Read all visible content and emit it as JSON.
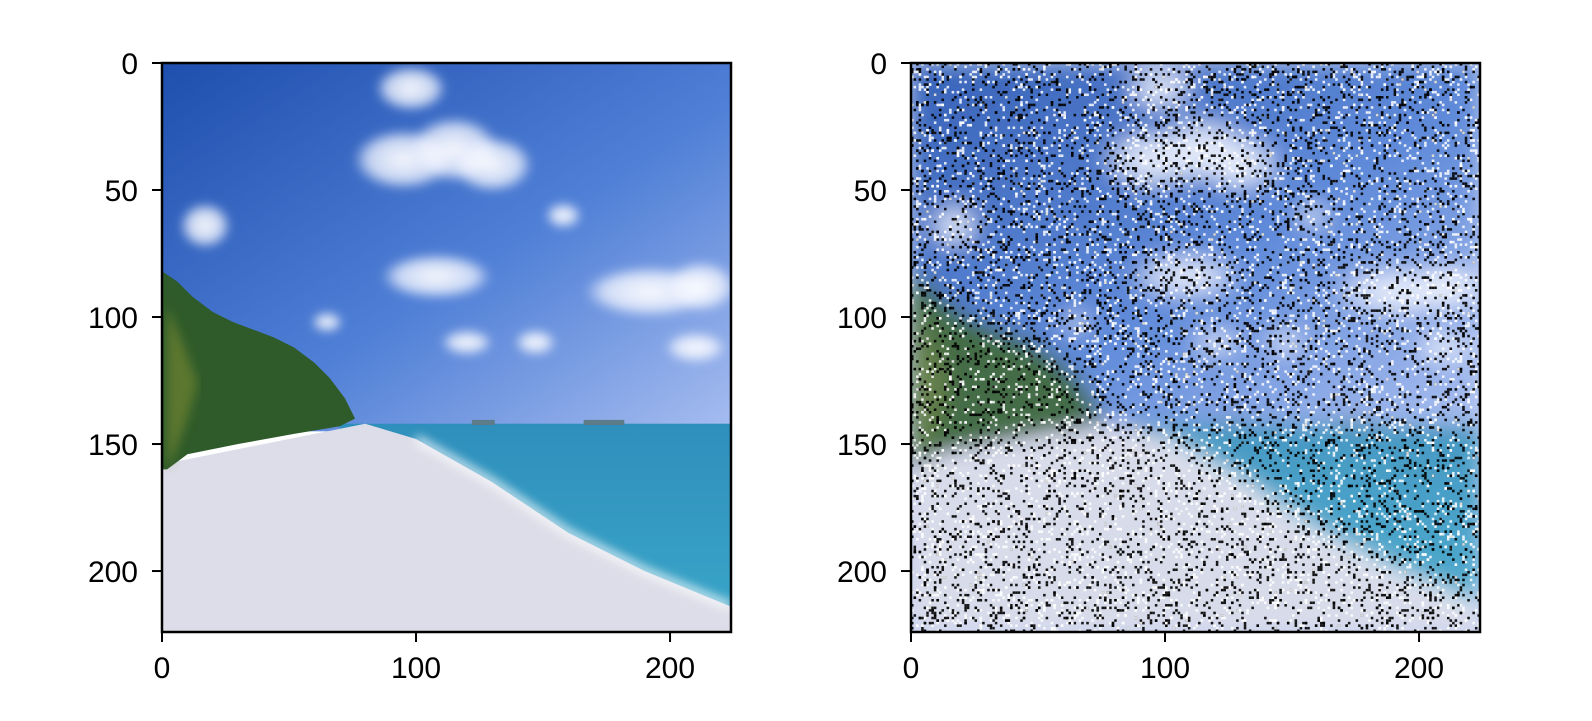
{
  "colors": {
    "sky_top": "#1f4fae",
    "sky_mid": "#4f7fd6",
    "sky_horizon": "#a7bdf0",
    "sea_far": "#2f8fbc",
    "sea_near": "#3aa6c8",
    "sand": "#dcdde8",
    "trees": "#2f5b2a",
    "noise_dark": "#000000",
    "noise_light": "#ffffff"
  },
  "chart_data": [
    {
      "type": "image",
      "title": "",
      "content": "beach-photo",
      "image_size": [
        224,
        224
      ],
      "xlim": [
        0,
        224
      ],
      "ylim": [
        224,
        0
      ],
      "x_ticks": [
        0,
        100,
        200
      ],
      "y_ticks": [
        0,
        50,
        100,
        150,
        200
      ],
      "x_tick_labels": [
        "0",
        "100",
        "200"
      ],
      "y_tick_labels": [
        "0",
        "50",
        "100",
        "150",
        "200"
      ]
    },
    {
      "type": "image",
      "title": "",
      "content": "beach-photo-with-salt-and-pepper-noise",
      "image_size": [
        224,
        224
      ],
      "xlim": [
        0,
        224
      ],
      "ylim": [
        224,
        0
      ],
      "x_ticks": [
        0,
        100,
        200
      ],
      "y_ticks": [
        0,
        50,
        100,
        150,
        200
      ],
      "x_tick_labels": [
        "0",
        "100",
        "200"
      ],
      "y_tick_labels": [
        "0",
        "50",
        "100",
        "150",
        "200"
      ]
    }
  ]
}
